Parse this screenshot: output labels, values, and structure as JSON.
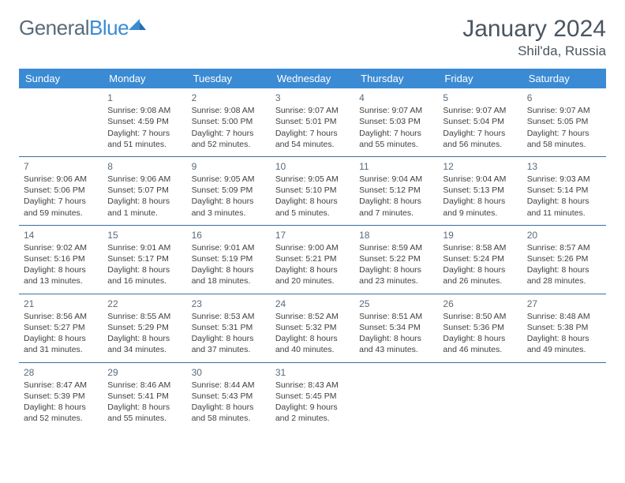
{
  "brand": {
    "part1": "General",
    "part2": "Blue"
  },
  "title": "January 2024",
  "location": "Shil'da, Russia",
  "colors": {
    "header_bg": "#3b8bd4",
    "header_text": "#ffffff",
    "rule": "#3b6ea0",
    "body_text": "#404040",
    "title_text": "#4a5560",
    "logo_gray": "#5a6b7a",
    "logo_blue": "#3b8bd4",
    "page_bg": "#ffffff"
  },
  "typography": {
    "title_fontsize": 30,
    "location_fontsize": 17,
    "dayhead_fontsize": 13,
    "cell_fontsize": 10.5,
    "daynum_fontsize": 12
  },
  "day_headers": [
    "Sunday",
    "Monday",
    "Tuesday",
    "Wednesday",
    "Thursday",
    "Friday",
    "Saturday"
  ],
  "weeks": [
    [
      {
        "num": "",
        "sunrise": "",
        "sunset": "",
        "daylight": ""
      },
      {
        "num": "1",
        "sunrise": "Sunrise: 9:08 AM",
        "sunset": "Sunset: 4:59 PM",
        "daylight": "Daylight: 7 hours and 51 minutes."
      },
      {
        "num": "2",
        "sunrise": "Sunrise: 9:08 AM",
        "sunset": "Sunset: 5:00 PM",
        "daylight": "Daylight: 7 hours and 52 minutes."
      },
      {
        "num": "3",
        "sunrise": "Sunrise: 9:07 AM",
        "sunset": "Sunset: 5:01 PM",
        "daylight": "Daylight: 7 hours and 54 minutes."
      },
      {
        "num": "4",
        "sunrise": "Sunrise: 9:07 AM",
        "sunset": "Sunset: 5:03 PM",
        "daylight": "Daylight: 7 hours and 55 minutes."
      },
      {
        "num": "5",
        "sunrise": "Sunrise: 9:07 AM",
        "sunset": "Sunset: 5:04 PM",
        "daylight": "Daylight: 7 hours and 56 minutes."
      },
      {
        "num": "6",
        "sunrise": "Sunrise: 9:07 AM",
        "sunset": "Sunset: 5:05 PM",
        "daylight": "Daylight: 7 hours and 58 minutes."
      }
    ],
    [
      {
        "num": "7",
        "sunrise": "Sunrise: 9:06 AM",
        "sunset": "Sunset: 5:06 PM",
        "daylight": "Daylight: 7 hours and 59 minutes."
      },
      {
        "num": "8",
        "sunrise": "Sunrise: 9:06 AM",
        "sunset": "Sunset: 5:07 PM",
        "daylight": "Daylight: 8 hours and 1 minute."
      },
      {
        "num": "9",
        "sunrise": "Sunrise: 9:05 AM",
        "sunset": "Sunset: 5:09 PM",
        "daylight": "Daylight: 8 hours and 3 minutes."
      },
      {
        "num": "10",
        "sunrise": "Sunrise: 9:05 AM",
        "sunset": "Sunset: 5:10 PM",
        "daylight": "Daylight: 8 hours and 5 minutes."
      },
      {
        "num": "11",
        "sunrise": "Sunrise: 9:04 AM",
        "sunset": "Sunset: 5:12 PM",
        "daylight": "Daylight: 8 hours and 7 minutes."
      },
      {
        "num": "12",
        "sunrise": "Sunrise: 9:04 AM",
        "sunset": "Sunset: 5:13 PM",
        "daylight": "Daylight: 8 hours and 9 minutes."
      },
      {
        "num": "13",
        "sunrise": "Sunrise: 9:03 AM",
        "sunset": "Sunset: 5:14 PM",
        "daylight": "Daylight: 8 hours and 11 minutes."
      }
    ],
    [
      {
        "num": "14",
        "sunrise": "Sunrise: 9:02 AM",
        "sunset": "Sunset: 5:16 PM",
        "daylight": "Daylight: 8 hours and 13 minutes."
      },
      {
        "num": "15",
        "sunrise": "Sunrise: 9:01 AM",
        "sunset": "Sunset: 5:17 PM",
        "daylight": "Daylight: 8 hours and 16 minutes."
      },
      {
        "num": "16",
        "sunrise": "Sunrise: 9:01 AM",
        "sunset": "Sunset: 5:19 PM",
        "daylight": "Daylight: 8 hours and 18 minutes."
      },
      {
        "num": "17",
        "sunrise": "Sunrise: 9:00 AM",
        "sunset": "Sunset: 5:21 PM",
        "daylight": "Daylight: 8 hours and 20 minutes."
      },
      {
        "num": "18",
        "sunrise": "Sunrise: 8:59 AM",
        "sunset": "Sunset: 5:22 PM",
        "daylight": "Daylight: 8 hours and 23 minutes."
      },
      {
        "num": "19",
        "sunrise": "Sunrise: 8:58 AM",
        "sunset": "Sunset: 5:24 PM",
        "daylight": "Daylight: 8 hours and 26 minutes."
      },
      {
        "num": "20",
        "sunrise": "Sunrise: 8:57 AM",
        "sunset": "Sunset: 5:26 PM",
        "daylight": "Daylight: 8 hours and 28 minutes."
      }
    ],
    [
      {
        "num": "21",
        "sunrise": "Sunrise: 8:56 AM",
        "sunset": "Sunset: 5:27 PM",
        "daylight": "Daylight: 8 hours and 31 minutes."
      },
      {
        "num": "22",
        "sunrise": "Sunrise: 8:55 AM",
        "sunset": "Sunset: 5:29 PM",
        "daylight": "Daylight: 8 hours and 34 minutes."
      },
      {
        "num": "23",
        "sunrise": "Sunrise: 8:53 AM",
        "sunset": "Sunset: 5:31 PM",
        "daylight": "Daylight: 8 hours and 37 minutes."
      },
      {
        "num": "24",
        "sunrise": "Sunrise: 8:52 AM",
        "sunset": "Sunset: 5:32 PM",
        "daylight": "Daylight: 8 hours and 40 minutes."
      },
      {
        "num": "25",
        "sunrise": "Sunrise: 8:51 AM",
        "sunset": "Sunset: 5:34 PM",
        "daylight": "Daylight: 8 hours and 43 minutes."
      },
      {
        "num": "26",
        "sunrise": "Sunrise: 8:50 AM",
        "sunset": "Sunset: 5:36 PM",
        "daylight": "Daylight: 8 hours and 46 minutes."
      },
      {
        "num": "27",
        "sunrise": "Sunrise: 8:48 AM",
        "sunset": "Sunset: 5:38 PM",
        "daylight": "Daylight: 8 hours and 49 minutes."
      }
    ],
    [
      {
        "num": "28",
        "sunrise": "Sunrise: 8:47 AM",
        "sunset": "Sunset: 5:39 PM",
        "daylight": "Daylight: 8 hours and 52 minutes."
      },
      {
        "num": "29",
        "sunrise": "Sunrise: 8:46 AM",
        "sunset": "Sunset: 5:41 PM",
        "daylight": "Daylight: 8 hours and 55 minutes."
      },
      {
        "num": "30",
        "sunrise": "Sunrise: 8:44 AM",
        "sunset": "Sunset: 5:43 PM",
        "daylight": "Daylight: 8 hours and 58 minutes."
      },
      {
        "num": "31",
        "sunrise": "Sunrise: 8:43 AM",
        "sunset": "Sunset: 5:45 PM",
        "daylight": "Daylight: 9 hours and 2 minutes."
      },
      {
        "num": "",
        "sunrise": "",
        "sunset": "",
        "daylight": ""
      },
      {
        "num": "",
        "sunrise": "",
        "sunset": "",
        "daylight": ""
      },
      {
        "num": "",
        "sunrise": "",
        "sunset": "",
        "daylight": ""
      }
    ]
  ]
}
